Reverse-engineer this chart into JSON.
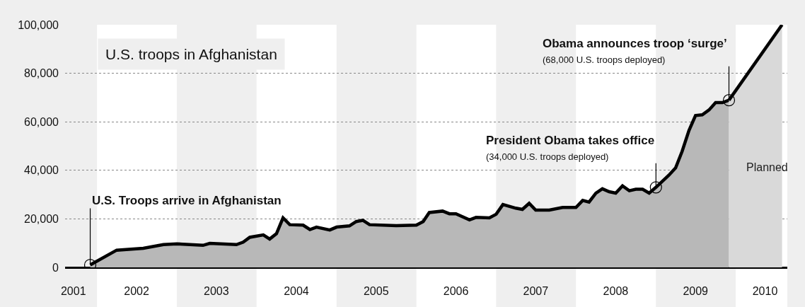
{
  "chart_data": {
    "type": "area",
    "title": "U.S. troops in Afghanistan",
    "x": [
      "2001-12",
      "2002-04",
      "2002-08",
      "2002-11",
      "2003-01",
      "2003-05",
      "2003-06",
      "2003-10",
      "2003-11",
      "2003-12",
      "2004-02",
      "2004-03",
      "2004-04",
      "2004-05",
      "2004-06",
      "2004-08",
      "2004-09",
      "2004-10",
      "2004-12",
      "2005-01",
      "2005-03",
      "2005-04",
      "2005-05",
      "2005-06",
      "2005-10",
      "2006-01",
      "2006-02",
      "2006-03",
      "2006-05",
      "2006-06",
      "2006-07",
      "2006-09",
      "2006-10",
      "2006-12",
      "2007-01",
      "2007-02",
      "2007-04",
      "2007-05",
      "2007-06",
      "2007-07",
      "2007-09",
      "2007-11",
      "2008-01",
      "2008-02",
      "2008-03",
      "2008-04",
      "2008-05",
      "2008-06",
      "2008-07",
      "2008-08",
      "2008-09",
      "2008-10",
      "2008-11",
      "2008-12",
      "2009-01",
      "2009-03",
      "2009-04",
      "2009-05",
      "2009-06",
      "2009-07",
      "2009-08",
      "2009-09",
      "2009-10",
      "2009-11",
      "2009-12"
    ],
    "series": [
      {
        "color": "#b8b8b8",
        "values": [
          1000,
          7100,
          7900,
          9400,
          9700,
          9100,
          9900,
          9400,
          10400,
          12400,
          13400,
          11700,
          13900,
          20400,
          17600,
          17400,
          15600,
          16600,
          15400,
          16600,
          17100,
          18900,
          19400,
          17600,
          17200,
          17400,
          18900,
          22600,
          23200,
          22100,
          22100,
          19600,
          20600,
          20400,
          21900,
          25900,
          24400,
          23900,
          26400,
          23600,
          23600,
          24700,
          24700,
          27600,
          26900,
          30600,
          32400,
          31200,
          30600,
          33600,
          31600,
          32200,
          32200,
          30600,
          33000,
          38000,
          41000,
          47900,
          56400,
          62600,
          62900,
          64900,
          67900,
          67900,
          68900
        ]
      },
      {
        "name": "Planned",
        "color": "#d9d9d9",
        "x": [
          "2009-12",
          "2010-08"
        ],
        "values": [
          68900,
          100000
        ]
      }
    ],
    "xlim": [
      "2001-08-08",
      "2010-08-25"
    ],
    "xticks": [
      {
        "value": "2001-09-15",
        "label": "2001"
      },
      {
        "value": "2002-07",
        "label": "2002"
      },
      {
        "value": "2003-07",
        "label": "2003"
      },
      {
        "value": "2004-07",
        "label": "2004"
      },
      {
        "value": "2005-07",
        "label": "2005"
      },
      {
        "value": "2006-07",
        "label": "2006"
      },
      {
        "value": "2007-07",
        "label": "2007"
      },
      {
        "value": "2008-07",
        "label": "2008"
      },
      {
        "value": "2009-07",
        "label": "2009"
      },
      {
        "value": "2010-05-15",
        "label": "2010"
      }
    ],
    "ylim": [
      0,
      100000
    ],
    "yticks": [
      {
        "value": 0,
        "label": "0"
      },
      {
        "value": 20000,
        "label": "20,000"
      },
      {
        "value": 40000,
        "label": "40,000"
      },
      {
        "value": 60000,
        "label": "60,000"
      },
      {
        "value": 80000,
        "label": "80,000"
      },
      {
        "value": 100000,
        "label": "100,000"
      }
    ],
    "grid": "y",
    "line_style": "solid",
    "bands": [
      {
        "axis": "x",
        "from": "2002-01",
        "to": "2003-01",
        "color": "#ffffff"
      },
      {
        "axis": "x",
        "from": "2004-01",
        "to": "2005-01",
        "color": "#ffffff"
      },
      {
        "axis": "x",
        "from": "2006-01",
        "to": "2007-01",
        "color": "#ffffff"
      },
      {
        "axis": "x",
        "from": "2008-01",
        "to": "2009-01",
        "color": "#ffffff"
      },
      {
        "axis": "x",
        "from": "2010-01",
        "to": "2010-08-25",
        "color": "#ffffff"
      }
    ],
    "annotations": [
      {
        "text": "U.S. Troops arrive in Afghanistan",
        "x": "2001-12",
        "y": 1000
      },
      {
        "text": "President Obama takes office\n(34,000 U.S. troops deployed)",
        "x": "2009-01",
        "y": 33000
      },
      {
        "text": "Obama announces troop ‘surge’\n(68,000 U.S. troops deployed)",
        "x": "2009-12",
        "y": 68900
      }
    ]
  }
}
